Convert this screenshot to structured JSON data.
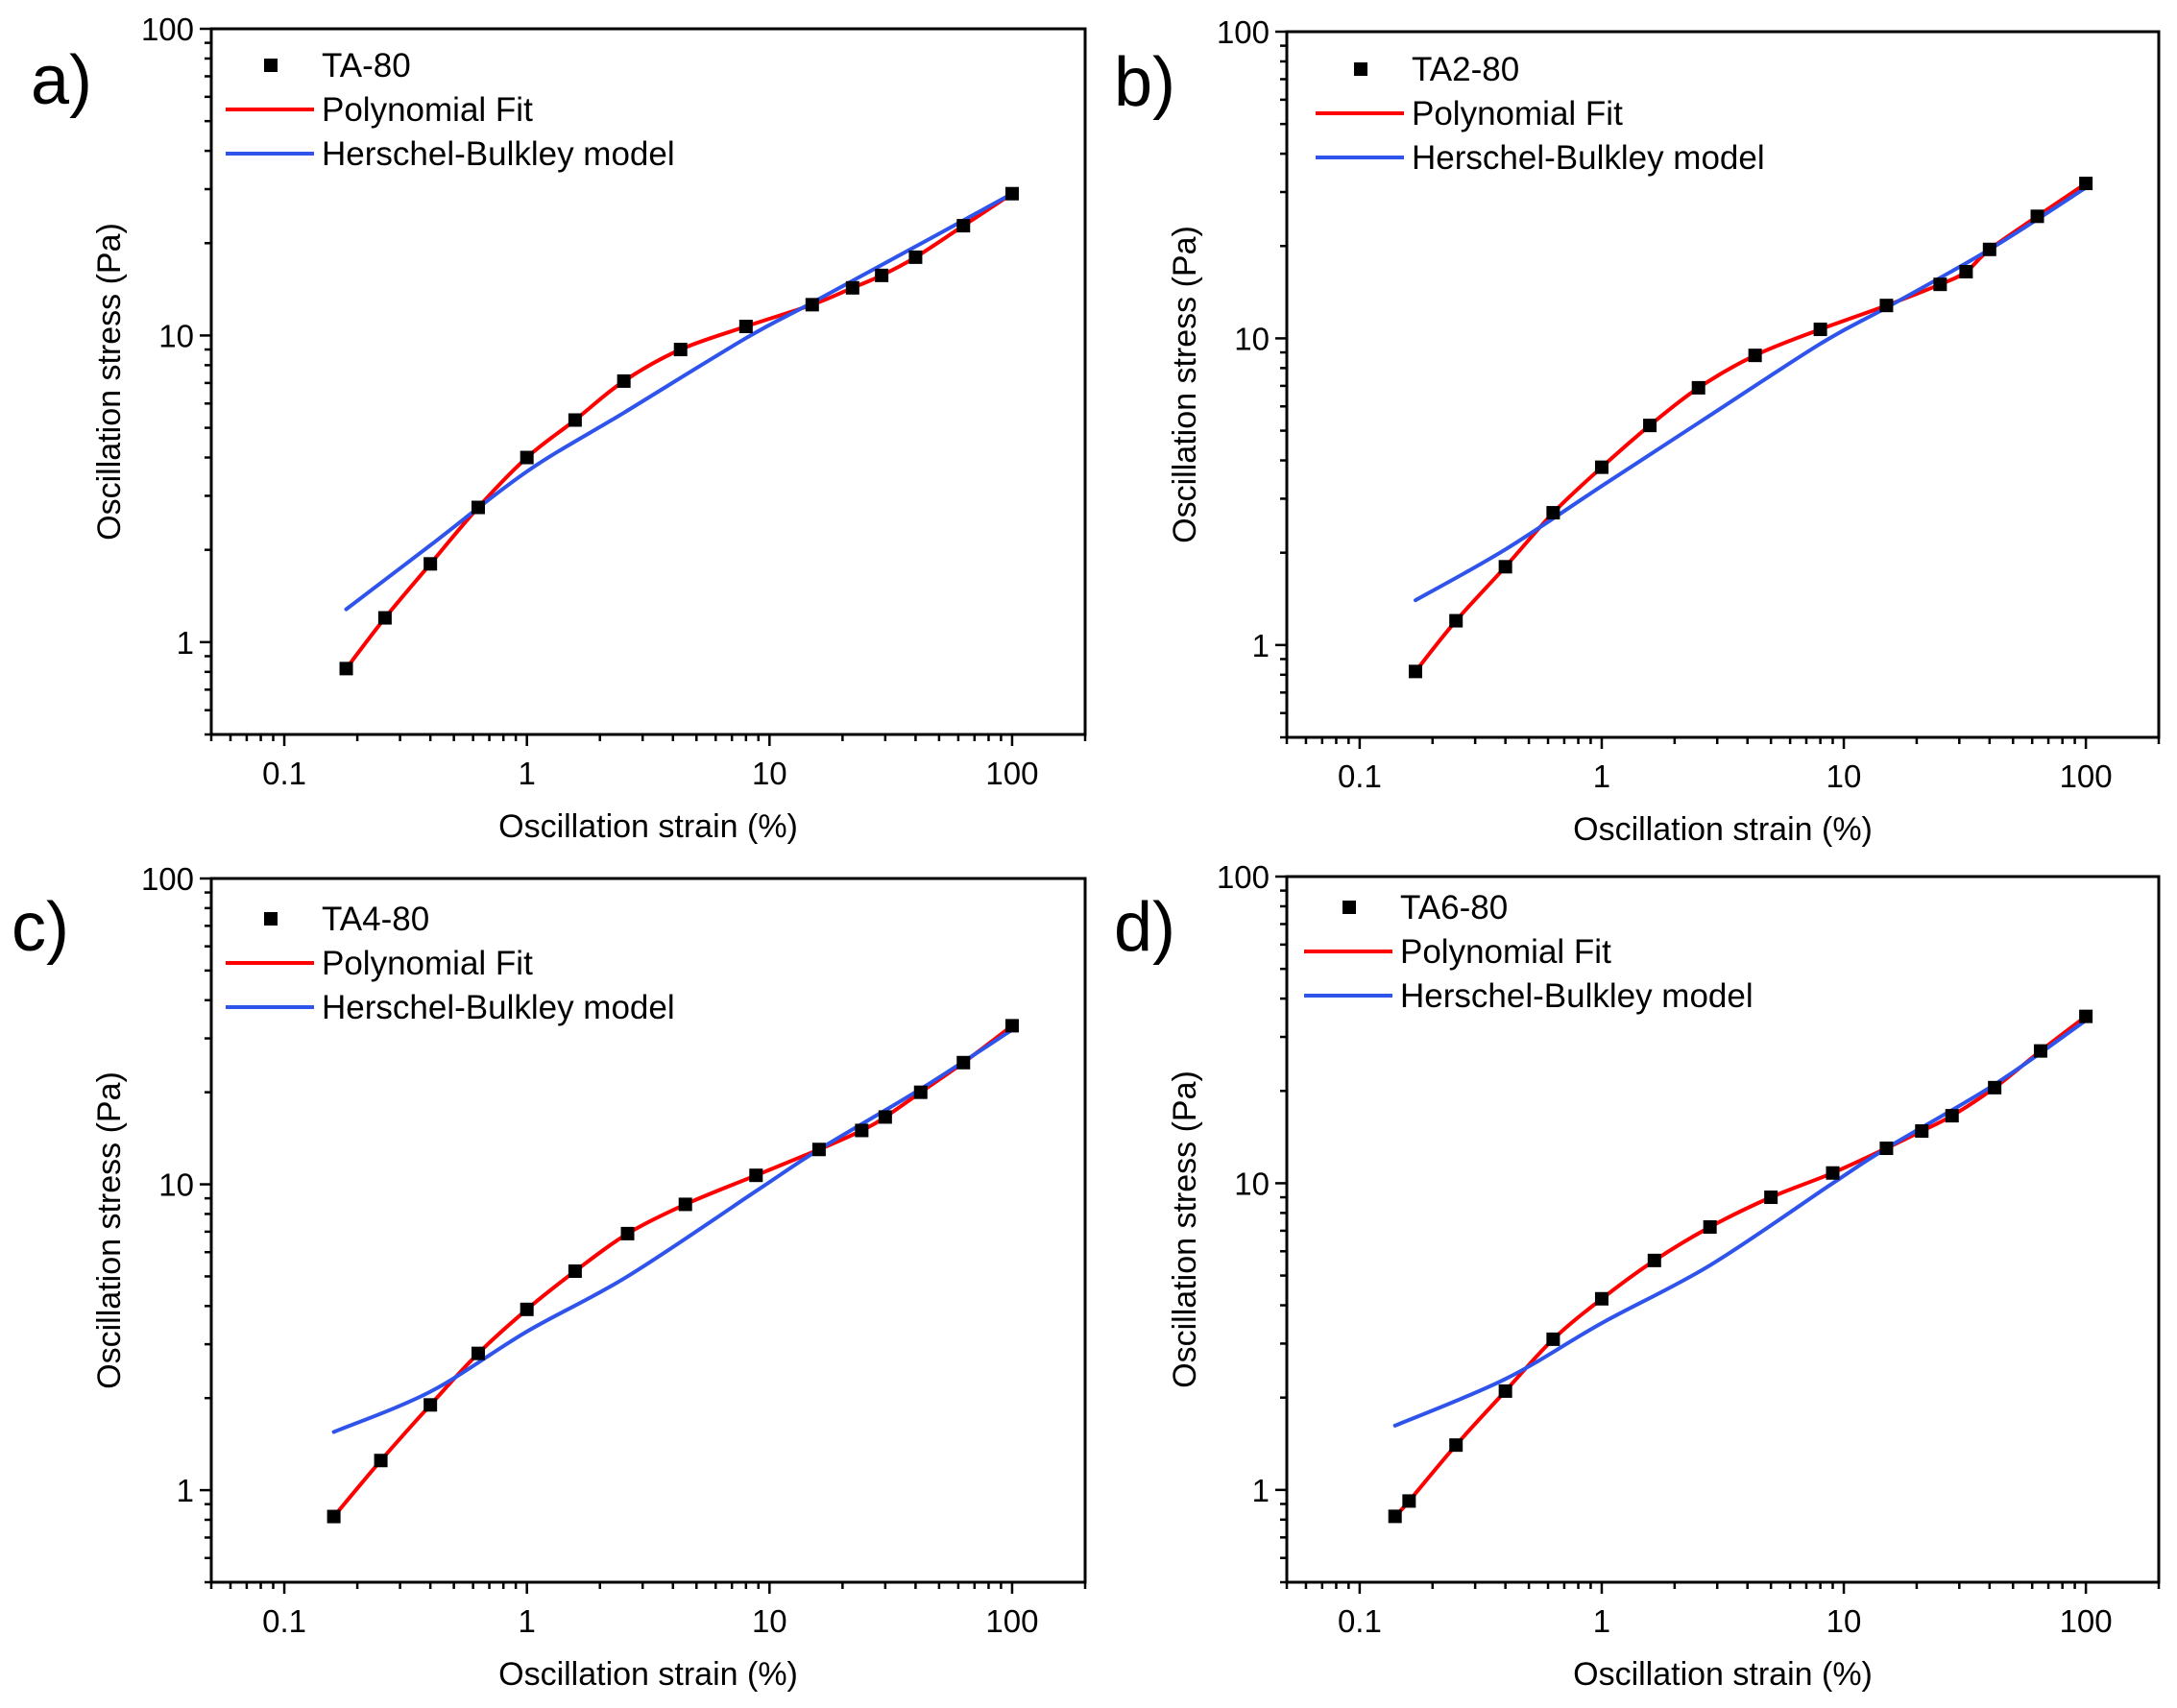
{
  "figure": {
    "panels": [
      {
        "panel_label": "a)",
        "chart_ref": 0
      },
      {
        "panel_label": "b)",
        "chart_ref": 1
      },
      {
        "panel_label": "c)",
        "chart_ref": 2
      },
      {
        "panel_label": "d)",
        "chart_ref": 3
      }
    ]
  },
  "chart_data": [
    {
      "type": "scatter",
      "panel_label": "a)",
      "xlabel": "Oscillation strain (%)",
      "ylabel": "Oscillation stress (Pa)",
      "xscale": "log",
      "yscale": "log",
      "xlim": [
        0.05,
        200
      ],
      "ylim": [
        0.5,
        100
      ],
      "x_ticks": [
        "0.1",
        "1",
        "10",
        "100"
      ],
      "x_tick_values": [
        0.1,
        1,
        10,
        100
      ],
      "y_ticks": [
        "1",
        "10",
        "100"
      ],
      "y_tick_values": [
        1,
        10,
        100
      ],
      "legend_position": "top-left",
      "series": [
        {
          "name": "TA-80",
          "kind": "markers",
          "marker": "square",
          "color": "#000000",
          "x": [
            0.18,
            0.26,
            0.4,
            0.63,
            1.0,
            1.58,
            2.51,
            4.3,
            8.0,
            15.0,
            22.0,
            29.0,
            40.0,
            63.0,
            100.0
          ],
          "y": [
            0.82,
            1.2,
            1.8,
            2.75,
            4.0,
            5.3,
            7.1,
            9.0,
            10.7,
            12.6,
            14.3,
            15.7,
            18.0,
            22.8,
            29.0
          ]
        },
        {
          "name": "Polynomial Fit",
          "kind": "line",
          "color": "#ff0000",
          "x": [
            0.18,
            0.26,
            0.4,
            0.63,
            1.0,
            1.58,
            2.51,
            4.3,
            8.0,
            15.0,
            22.0,
            29.0,
            40.0,
            63.0,
            100.0
          ],
          "y": [
            0.82,
            1.2,
            1.8,
            2.75,
            4.0,
            5.3,
            7.1,
            9.0,
            10.7,
            12.6,
            14.3,
            15.7,
            18.0,
            22.8,
            29.0
          ]
        },
        {
          "name": "Herschel-Bulkley model",
          "kind": "line",
          "color": "#2f54eb",
          "x": [
            0.18,
            0.4,
            1.0,
            2.51,
            8.0,
            15.0,
            40.0,
            100.0
          ],
          "y": [
            1.28,
            2.07,
            3.6,
            5.6,
            9.8,
            12.8,
            19.5,
            29.0
          ]
        }
      ]
    },
    {
      "type": "scatter",
      "panel_label": "b)",
      "xlabel": "Oscillation strain (%)",
      "ylabel": "Oscillation stress (Pa)",
      "xscale": "log",
      "yscale": "log",
      "xlim": [
        0.05,
        200
      ],
      "ylim": [
        0.5,
        100
      ],
      "x_ticks": [
        "0.1",
        "1",
        "10",
        "100"
      ],
      "x_tick_values": [
        0.1,
        1,
        10,
        100
      ],
      "y_ticks": [
        "1",
        "10",
        "100"
      ],
      "y_tick_values": [
        1,
        10,
        100
      ],
      "legend_position": "top-left",
      "series": [
        {
          "name": "TA2-80",
          "kind": "markers",
          "marker": "square",
          "color": "#000000",
          "x": [
            0.17,
            0.25,
            0.4,
            0.63,
            1.0,
            1.58,
            2.51,
            4.3,
            8.0,
            15.0,
            25.0,
            32.0,
            40.0,
            63.0,
            100.0
          ],
          "y": [
            0.82,
            1.2,
            1.8,
            2.7,
            3.8,
            5.2,
            6.9,
            8.8,
            10.7,
            12.8,
            15.0,
            16.5,
            19.5,
            25.0,
            32.0
          ]
        },
        {
          "name": "Polynomial Fit",
          "kind": "line",
          "color": "#ff0000",
          "x": [
            0.17,
            0.25,
            0.4,
            0.63,
            1.0,
            1.58,
            2.51,
            4.3,
            8.0,
            15.0,
            25.0,
            32.0,
            40.0,
            63.0,
            100.0
          ],
          "y": [
            0.82,
            1.2,
            1.8,
            2.7,
            3.8,
            5.2,
            6.9,
            8.8,
            10.7,
            12.8,
            15.0,
            16.5,
            19.5,
            25.0,
            32.0
          ]
        },
        {
          "name": "Herschel-Bulkley model",
          "kind": "line",
          "color": "#2f54eb",
          "x": [
            0.17,
            0.4,
            1.0,
            2.51,
            8.0,
            15.0,
            40.0,
            100.0
          ],
          "y": [
            1.4,
            2.05,
            3.3,
            5.3,
            9.6,
            12.6,
            19.5,
            31.0
          ]
        }
      ]
    },
    {
      "type": "scatter",
      "panel_label": "c)",
      "xlabel": "Oscillation strain (%)",
      "ylabel": "Oscillation stress (Pa)",
      "xscale": "log",
      "yscale": "log",
      "xlim": [
        0.05,
        200
      ],
      "ylim": [
        0.5,
        100
      ],
      "x_ticks": [
        "0.1",
        "1",
        "10",
        "100"
      ],
      "x_tick_values": [
        0.1,
        1,
        10,
        100
      ],
      "y_ticks": [
        "1",
        "10",
        "100"
      ],
      "y_tick_values": [
        1,
        10,
        100
      ],
      "legend_position": "top-left",
      "series": [
        {
          "name": "TA4-80",
          "kind": "markers",
          "marker": "square",
          "color": "#000000",
          "x": [
            0.16,
            0.25,
            0.4,
            0.63,
            1.0,
            1.58,
            2.6,
            4.5,
            8.8,
            16.0,
            24.0,
            30.0,
            42.0,
            63.0,
            100.0
          ],
          "y": [
            0.82,
            1.25,
            1.9,
            2.8,
            3.9,
            5.2,
            6.9,
            8.6,
            10.7,
            13.0,
            15.0,
            16.6,
            20.0,
            25.0,
            33.0
          ]
        },
        {
          "name": "Polynomial Fit",
          "kind": "line",
          "color": "#ff0000",
          "x": [
            0.16,
            0.25,
            0.4,
            0.63,
            1.0,
            1.58,
            2.6,
            4.5,
            8.8,
            16.0,
            24.0,
            30.0,
            42.0,
            63.0,
            100.0
          ],
          "y": [
            0.82,
            1.25,
            1.9,
            2.8,
            3.9,
            5.2,
            6.9,
            8.6,
            10.7,
            13.0,
            15.0,
            16.6,
            20.0,
            25.0,
            33.0
          ]
        },
        {
          "name": "Herschel-Bulkley model",
          "kind": "line",
          "color": "#2f54eb",
          "x": [
            0.16,
            0.4,
            1.0,
            2.6,
            8.8,
            16.0,
            42.0,
            100.0
          ],
          "y": [
            1.55,
            2.1,
            3.3,
            5.0,
            9.5,
            13.0,
            20.5,
            32.0
          ]
        }
      ]
    },
    {
      "type": "scatter",
      "panel_label": "d)",
      "xlabel": "Oscillation strain (%)",
      "ylabel": "Oscillation stress (Pa)",
      "xscale": "log",
      "yscale": "log",
      "xlim": [
        0.05,
        200
      ],
      "ylim": [
        0.5,
        100
      ],
      "x_ticks": [
        "0.1",
        "1",
        "10",
        "100"
      ],
      "x_tick_values": [
        0.1,
        1,
        10,
        100
      ],
      "y_ticks": [
        "1",
        "10",
        "100"
      ],
      "y_tick_values": [
        1,
        10,
        100
      ],
      "legend_position": "top-left",
      "series": [
        {
          "name": "TA6-80",
          "kind": "markers",
          "marker": "square",
          "color": "#000000",
          "x": [
            0.14,
            0.16,
            0.25,
            0.4,
            0.63,
            1.0,
            1.65,
            2.8,
            5.0,
            9.0,
            15.0,
            21.0,
            28.0,
            42.0,
            65.0,
            100.0
          ],
          "y": [
            0.82,
            0.92,
            1.4,
            2.1,
            3.1,
            4.2,
            5.6,
            7.2,
            9.0,
            10.8,
            13.0,
            14.8,
            16.6,
            20.5,
            27.0,
            35.0
          ]
        },
        {
          "name": "Polynomial Fit",
          "kind": "line",
          "color": "#ff0000",
          "x": [
            0.14,
            0.16,
            0.25,
            0.4,
            0.63,
            1.0,
            1.65,
            2.8,
            5.0,
            9.0,
            15.0,
            21.0,
            28.0,
            42.0,
            65.0,
            100.0
          ],
          "y": [
            0.82,
            0.92,
            1.4,
            2.1,
            3.1,
            4.2,
            5.6,
            7.2,
            9.0,
            10.8,
            13.0,
            14.8,
            16.6,
            20.5,
            27.0,
            35.0
          ]
        },
        {
          "name": "Herschel-Bulkley model",
          "kind": "line",
          "color": "#2f54eb",
          "x": [
            0.14,
            0.4,
            1.0,
            2.8,
            9.0,
            15.0,
            42.0,
            100.0
          ],
          "y": [
            1.62,
            2.3,
            3.5,
            5.4,
            10.0,
            13.0,
            21.0,
            34.0
          ]
        }
      ]
    }
  ]
}
